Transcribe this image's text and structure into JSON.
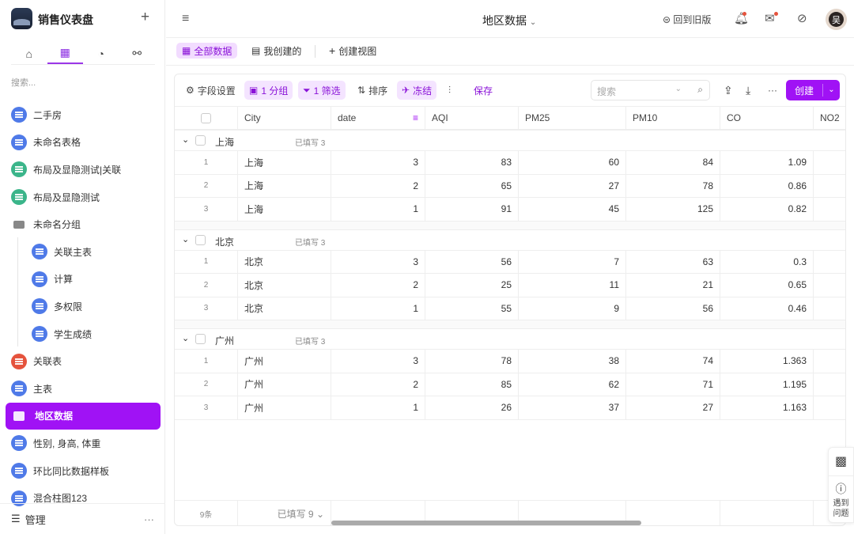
{
  "sidebar": {
    "app_name": "销售仪表盘",
    "search_placeholder": "搜索...",
    "items": [
      {
        "label": "二手房",
        "icon": "table-icon",
        "color": "blue"
      },
      {
        "label": "未命名表格",
        "icon": "table-icon",
        "color": "blue"
      },
      {
        "label": "布局及显隐测试|关联",
        "icon": "table-icon",
        "color": "green"
      },
      {
        "label": "布局及显隐测试",
        "icon": "table-icon",
        "color": "green"
      },
      {
        "label": "未命名分组",
        "icon": "folder-icon",
        "color": "folder"
      },
      {
        "label": "关联主表",
        "icon": "table-icon",
        "color": "blue",
        "child": true
      },
      {
        "label": "计算",
        "icon": "table-icon",
        "color": "blue",
        "child": true
      },
      {
        "label": "多权限",
        "icon": "table-icon",
        "color": "blue",
        "child": true
      },
      {
        "label": "学生成绩",
        "icon": "table-icon",
        "color": "blue",
        "child": true
      },
      {
        "label": "关联表",
        "icon": "briefcase-icon",
        "color": "red"
      },
      {
        "label": "主表",
        "icon": "table-icon",
        "color": "blue"
      },
      {
        "label": "地区数据",
        "icon": "table-icon",
        "color": "active",
        "active": true
      },
      {
        "label": "性别, 身高, 体重",
        "icon": "table-icon",
        "color": "blue"
      },
      {
        "label": "环比同比数据样板",
        "icon": "table-icon",
        "color": "blue"
      },
      {
        "label": "混合柱图123",
        "icon": "table-icon",
        "color": "blue"
      }
    ],
    "manage_label": "管理"
  },
  "header": {
    "title": "地区数据",
    "old_version": "回到旧版"
  },
  "views": {
    "all": "全部数据",
    "mine": "我创建的",
    "create": "创建视图"
  },
  "toolbar": {
    "fields": "字段设置",
    "group": "1 分组",
    "filter": "1 筛选",
    "sort": "排序",
    "freeze": "冻结",
    "save": "保存",
    "search_placeholder": "搜索",
    "create": "创建"
  },
  "table": {
    "columns": [
      "City",
      "date",
      "AQI",
      "PM25",
      "PM10",
      "CO",
      "NO2"
    ],
    "groups": [
      {
        "name": "上海",
        "filled": "已填写 3",
        "rows": [
          [
            "上海",
            "3",
            "83",
            "60",
            "84",
            "1.09"
          ],
          [
            "上海",
            "2",
            "65",
            "27",
            "78",
            "0.86"
          ],
          [
            "上海",
            "1",
            "91",
            "45",
            "125",
            "0.82"
          ]
        ]
      },
      {
        "name": "北京",
        "filled": "已填写 3",
        "rows": [
          [
            "北京",
            "3",
            "56",
            "7",
            "63",
            "0.3"
          ],
          [
            "北京",
            "2",
            "25",
            "11",
            "21",
            "0.65"
          ],
          [
            "北京",
            "1",
            "55",
            "9",
            "56",
            "0.46"
          ]
        ]
      },
      {
        "name": "广州",
        "filled": "已填写 3",
        "rows": [
          [
            "广州",
            "3",
            "78",
            "38",
            "74",
            "1.363"
          ],
          [
            "广州",
            "2",
            "85",
            "62",
            "71",
            "1.195"
          ],
          [
            "广州",
            "1",
            "26",
            "37",
            "27",
            "1.163"
          ]
        ]
      }
    ],
    "footer_count": "9条",
    "footer_filled": "已填写 9"
  },
  "help": {
    "label": "遇到问题"
  },
  "colors": {
    "accent": "#a012f5",
    "blue": "#4f7ae8",
    "green": "#3bb58a",
    "red": "#e5533d"
  }
}
